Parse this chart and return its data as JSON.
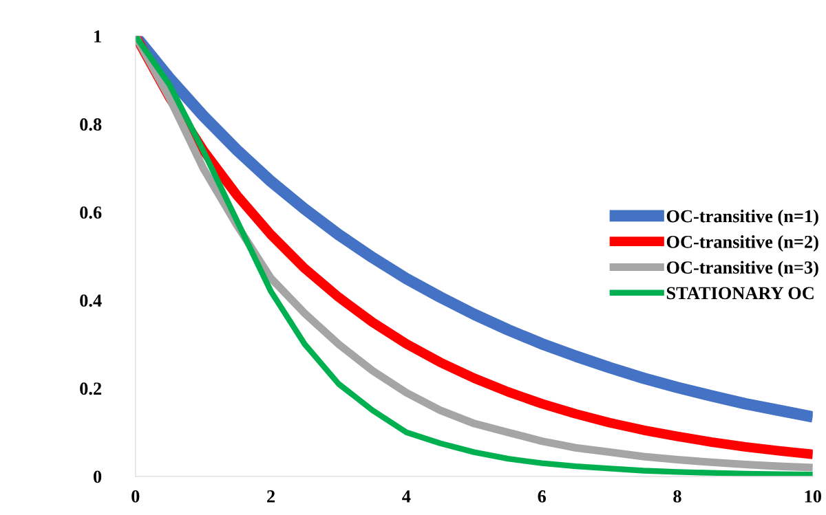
{
  "chart_data": {
    "type": "line",
    "x": [
      0,
      0.5,
      1,
      1.5,
      2,
      2.5,
      3,
      3.5,
      4,
      4.5,
      5,
      5.5,
      6,
      6.5,
      7,
      7.5,
      8,
      8.5,
      9,
      9.5,
      10
    ],
    "series": [
      {
        "name": "OC-transitive (n=1)",
        "color": "#4472c4",
        "values": [
          1,
          0.905,
          0.819,
          0.741,
          0.67,
          0.607,
          0.549,
          0.497,
          0.449,
          0.407,
          0.368,
          0.333,
          0.301,
          0.273,
          0.247,
          0.223,
          0.202,
          0.183,
          0.165,
          0.15,
          0.135
        ]
      },
      {
        "name": "OC-transitive (n=2)",
        "color": "#ff0000",
        "values": [
          1,
          0.861,
          0.741,
          0.638,
          0.549,
          0.472,
          0.407,
          0.35,
          0.301,
          0.259,
          0.223,
          0.192,
          0.165,
          0.142,
          0.122,
          0.105,
          0.091,
          0.078,
          0.067,
          0.058,
          0.05
        ]
      },
      {
        "name": "OC-transitive (n=3)",
        "color": "#a5a5a5",
        "values": [
          1,
          0.86,
          0.7,
          0.57,
          0.45,
          0.37,
          0.3,
          0.24,
          0.19,
          0.15,
          0.12,
          0.1,
          0.08,
          0.065,
          0.055,
          0.045,
          0.038,
          0.032,
          0.027,
          0.023,
          0.02
        ]
      },
      {
        "name": "STATIONARY OC",
        "color": "#00b050",
        "values": [
          1,
          0.89,
          0.74,
          0.58,
          0.42,
          0.3,
          0.21,
          0.15,
          0.1,
          0.075,
          0.055,
          0.04,
          0.03,
          0.023,
          0.018,
          0.013,
          0.01,
          0.008,
          0.006,
          0.005,
          0.004
        ]
      }
    ],
    "xlim": [
      0,
      10
    ],
    "xticks": [
      0,
      2,
      4,
      6,
      8,
      10
    ],
    "ylim": [
      0,
      1
    ],
    "yticks": [
      0,
      {
        "value": 0.2,
        "label": "0.2"
      },
      {
        "value": 0.4,
        "label": "0.4"
      },
      {
        "value": 0.6,
        "label": "0.6"
      },
      {
        "value": 0.8,
        "label": "0.8"
      },
      1
    ],
    "legend": "right",
    "grid": false,
    "marker": "none",
    "line_style": "solid"
  }
}
